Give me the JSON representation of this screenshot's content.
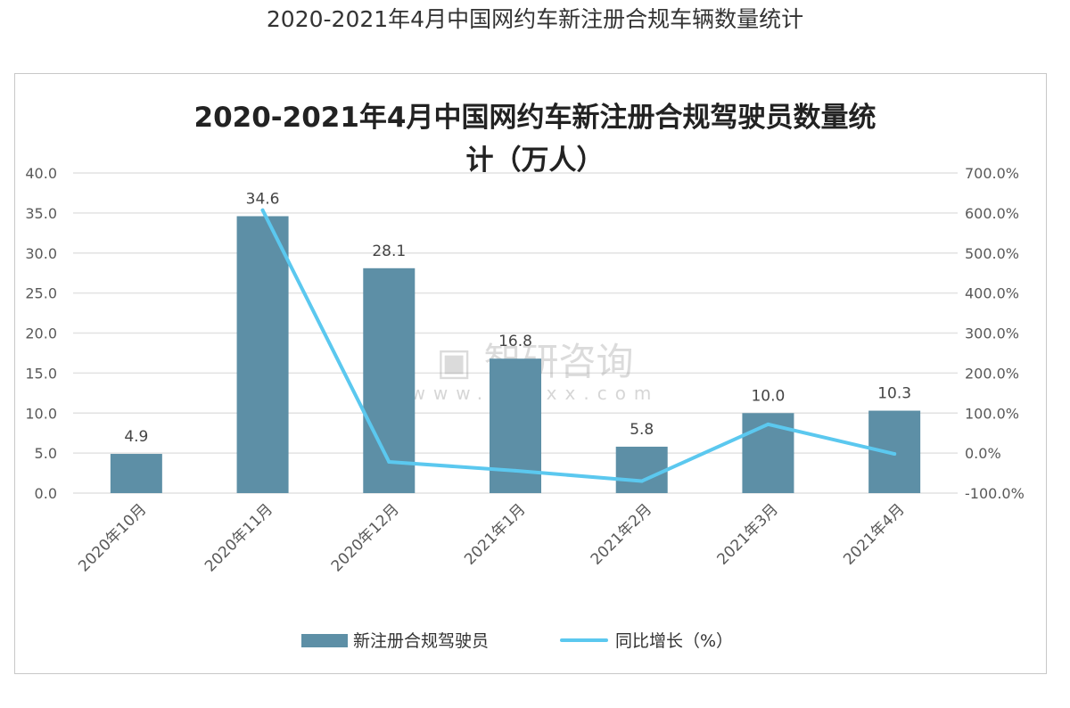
{
  "page_title": "2020-2021年4月中国网约车新注册合规车辆数量统计",
  "watermark": {
    "brand": "智研咨询",
    "url": "www.chyxx.com"
  },
  "colors": {
    "bar": "#5d8fa6",
    "line": "#5bc8ef",
    "grid": "#e2e2e2",
    "text": "#595959"
  },
  "chart_data": {
    "type": "bar+line",
    "title_lines": [
      "2020-2021年4月中国网约车新注册合规驾驶员数量统",
      "计（万人）"
    ],
    "categories": [
      "2020年10月",
      "2020年11月",
      "2020年12月",
      "2021年1月",
      "2021年2月",
      "2021年3月",
      "2021年4月"
    ],
    "series": [
      {
        "name": "新注册合规驾驶员",
        "type": "bar",
        "axis": "left",
        "values": [
          4.9,
          34.6,
          28.1,
          16.8,
          5.8,
          10.0,
          10.3
        ],
        "labels": [
          "4.9",
          "34.6",
          "28.1",
          "16.8",
          "5.8",
          "10.0",
          "10.3"
        ]
      },
      {
        "name": "同比增长（%）",
        "type": "line",
        "axis": "right",
        "values": [
          null,
          607,
          -22,
          -44,
          -70,
          72,
          -2
        ]
      }
    ],
    "y_left": {
      "min": 0,
      "max": 40,
      "ticks": [
        "0.0",
        "5.0",
        "10.0",
        "15.0",
        "20.0",
        "25.0",
        "30.0",
        "35.0",
        "40.0"
      ]
    },
    "y_right": {
      "min": -100,
      "max": 700,
      "ticks": [
        "-100.0%",
        "0.0%",
        "100.0%",
        "200.0%",
        "300.0%",
        "400.0%",
        "500.0%",
        "600.0%",
        "700.0%"
      ]
    },
    "grid": true,
    "legend_position": "bottom"
  }
}
